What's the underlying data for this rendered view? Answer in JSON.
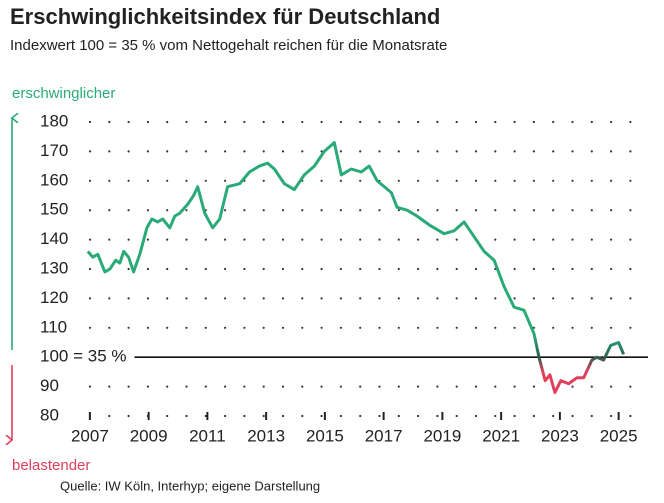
{
  "chart_data": {
    "type": "line",
    "title": "Erschwinglichkeitsindex für Deutschland",
    "subtitle": "Indexwert 100 = 35 % vom Nettogehalt reichen für die Monatsrate",
    "upper_label": "erschwinglicher",
    "lower_label": "belastender",
    "source": "Quelle: IW Köln, Interhyp; eigene Darstellung",
    "x": [
      2006.93,
      2007.1,
      2007.27,
      2007.51,
      2007.68,
      2007.88,
      2008.02,
      2008.15,
      2008.32,
      2008.49,
      2008.7,
      2008.94,
      2009.11,
      2009.31,
      2009.48,
      2009.72,
      2009.89,
      2010.06,
      2010.33,
      2010.53,
      2010.67,
      2010.91,
      2011.18,
      2011.42,
      2011.69,
      2012.1,
      2012.43,
      2012.77,
      2013.05,
      2013.28,
      2013.62,
      2013.96,
      2014.3,
      2014.64,
      2014.98,
      2015.32,
      2015.56,
      2015.9,
      2016.24,
      2016.51,
      2016.78,
      2017.26,
      2017.46,
      2017.8,
      2018.14,
      2018.55,
      2019.06,
      2019.4,
      2019.74,
      2020.08,
      2020.42,
      2020.76,
      2021.1,
      2021.44,
      2021.78,
      2022.12,
      2022.29,
      2022.5,
      2022.66,
      2022.83,
      2023.03,
      2023.3,
      2023.58,
      2023.81,
      2024.09,
      2024.26,
      2024.49,
      2024.73,
      2025.0,
      2025.17
    ],
    "series": [
      {
        "color": "#2aaa78",
        "below_color": "#e0405a",
        "values": [
          136,
          134,
          135,
          129,
          130,
          133,
          132,
          136,
          134,
          129,
          135,
          144,
          147,
          146,
          147,
          144,
          148,
          149,
          152,
          155,
          158,
          149,
          144,
          147,
          158,
          159,
          163,
          165,
          166,
          164,
          159,
          157,
          162,
          165,
          170,
          173,
          162,
          164,
          163,
          165,
          160,
          156,
          151,
          150,
          148,
          145,
          142,
          143,
          146,
          141,
          136,
          133,
          124,
          117,
          116,
          108,
          100,
          92,
          94,
          88,
          92,
          91,
          93,
          93,
          99,
          100,
          99,
          104,
          105,
          101
        ]
      }
    ],
    "xlim": [
      2006.8,
      2026
    ],
    "ylim": [
      80,
      180
    ],
    "xticks": [
      2007,
      2009,
      2011,
      2013,
      2015,
      2017,
      2019,
      2021,
      2023,
      2025
    ],
    "yticks": [
      80,
      90,
      {
        "value": 100,
        "label": "100 = 35 %"
      },
      110,
      120,
      130,
      140,
      150,
      160,
      170,
      180
    ],
    "grid": true
  }
}
